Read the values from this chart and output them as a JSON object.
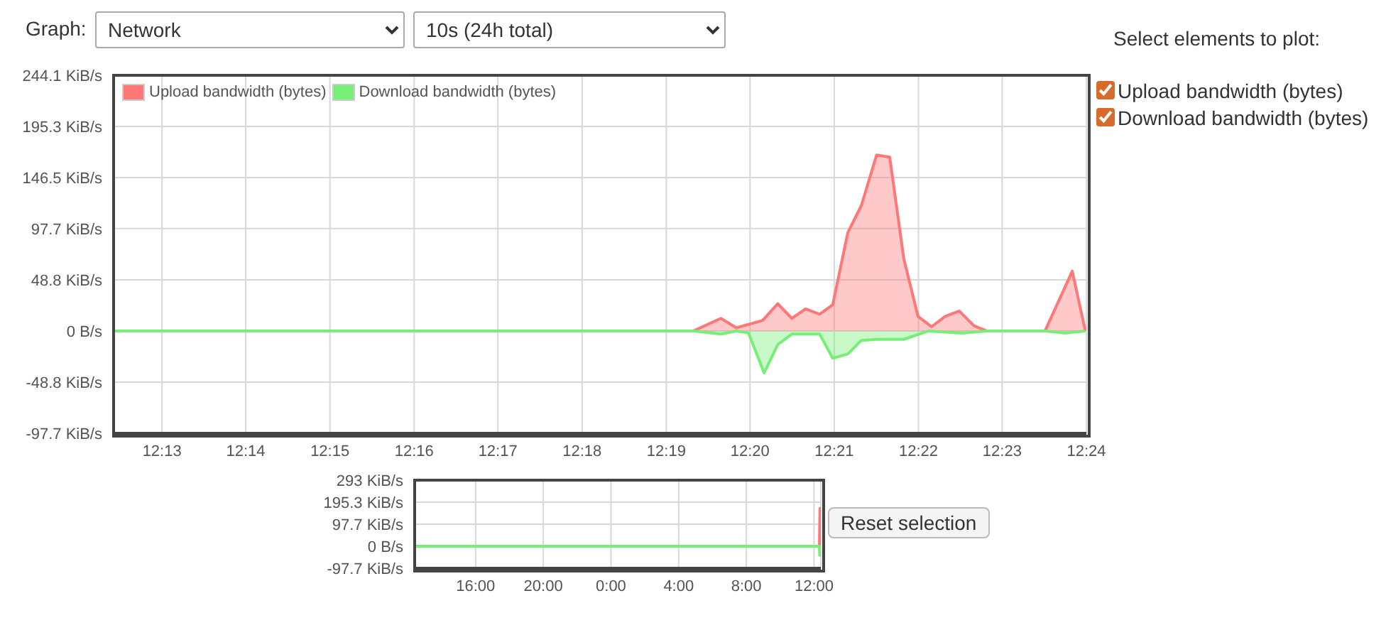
{
  "chart_data": [
    {
      "type": "area",
      "annotations": [
        "Graph:",
        "Network",
        "10s (24h total)",
        "Select elements to plot:"
      ],
      "series": [
        {
          "name": "Upload bandwidth (bytes)",
          "color": "#ff7777",
          "x": [
            12.2071,
            12.3221,
            12.3275,
            12.3306,
            12.3358,
            12.3388,
            12.3416,
            12.3443,
            12.3471,
            12.3497,
            12.3527,
            12.3554,
            12.3584,
            12.361,
            12.3638,
            12.3666,
            12.3693,
            12.372,
            12.3748,
            12.3777,
            12.3802,
            12.3918,
            12.3972,
            12.3998
          ],
          "values": [
            0,
            0,
            12,
            3,
            10,
            26,
            12,
            21,
            16,
            25,
            94,
            120,
            168,
            166,
            69,
            14,
            4,
            14,
            19,
            5,
            0,
            0,
            57,
            0
          ]
        },
        {
          "name": "Download bandwidth (bytes)",
          "color": "#77ee77",
          "x": [
            12.2071,
            12.3221,
            12.3275,
            12.3306,
            12.333,
            12.3361,
            12.3388,
            12.3416,
            12.3471,
            12.3497,
            12.3527,
            12.3554,
            12.3584,
            12.3638,
            12.3687,
            12.3753,
            12.3802,
            12.3918,
            12.396,
            12.3998
          ],
          "values": [
            0,
            0,
            -3,
            0,
            -2,
            -40,
            -13,
            -3,
            -3,
            -26,
            -22,
            -9,
            -8,
            -8,
            0,
            -2,
            0,
            0,
            -2,
            0
          ]
        }
      ],
      "xlim": [
        12.2071,
        12.4
      ],
      "xticks": [
        {
          "value": 12.2167,
          "label": "12:13"
        },
        {
          "value": 12.2333,
          "label": "12:14"
        },
        {
          "value": 12.25,
          "label": "12:15"
        },
        {
          "value": 12.2667,
          "label": "12:16"
        },
        {
          "value": 12.2833,
          "label": "12:17"
        },
        {
          "value": 12.3,
          "label": "12:18"
        },
        {
          "value": 12.3167,
          "label": "12:19"
        },
        {
          "value": 12.3333,
          "label": "12:20"
        },
        {
          "value": 12.35,
          "label": "12:21"
        },
        {
          "value": 12.3667,
          "label": "12:22"
        },
        {
          "value": 12.3833,
          "label": "12:23"
        },
        {
          "value": 12.4,
          "label": "12:24"
        }
      ],
      "ylim": [
        -97.7,
        244.1
      ],
      "yticks": [
        {
          "value": -97.7,
          "label": "-97.7 KiB/s"
        },
        {
          "value": -48.8,
          "label": "-48.8 KiB/s"
        },
        {
          "value": 0,
          "label": "0 B/s"
        },
        {
          "value": 48.8,
          "label": "48.8 KiB/s"
        },
        {
          "value": 97.7,
          "label": "97.7 KiB/s"
        },
        {
          "value": 146.5,
          "label": "146.5 KiB/s"
        },
        {
          "value": 195.3,
          "label": "195.3 KiB/s"
        },
        {
          "value": 244.1,
          "label": "244.1 KiB/s"
        }
      ],
      "grid": true,
      "legend": "top left"
    },
    {
      "type": "area",
      "annotations": [
        "Reset selection"
      ],
      "series": [
        {
          "color": "#ff7777",
          "x": [
            "2000-01-01T12:24",
            "2000-01-02T12:19",
            "2000-01-02T12:21",
            "2000-01-02T12:24"
          ],
          "values": [
            0,
            0,
            168,
            0
          ]
        },
        {
          "color": "#77ee77",
          "x": [
            "2000-01-01T12:24",
            "2000-01-02T12:19",
            "2000-01-02T12:20",
            "2000-01-02T12:24"
          ],
          "values": [
            0,
            0,
            -40,
            0
          ]
        }
      ],
      "xlim": [
        "2000-01-01T12:24",
        "2000-01-02T12:24"
      ],
      "xticks": [
        {
          "value": "2000-01-01T16:00",
          "label": "16:00"
        },
        {
          "value": "2000-01-01T20:00",
          "label": "20:00"
        },
        {
          "value": "2000-01-02T00:00",
          "label": "0:00"
        },
        {
          "value": "2000-01-02T04:00",
          "label": "4:00"
        },
        {
          "value": "2000-01-02T08:00",
          "label": "8:00"
        },
        {
          "value": "2000-01-02T12:00",
          "label": "12:00"
        }
      ],
      "ylim": [
        -97.7,
        293
      ],
      "yticks": [
        {
          "value": -97.7,
          "label": "-97.7 KiB/s"
        },
        {
          "value": 0,
          "label": "0 B/s"
        },
        {
          "value": 97.7,
          "label": "97.7 KiB/s"
        },
        {
          "value": 195.3,
          "label": "195.3 KiB/s"
        },
        {
          "value": 293,
          "label": "293 KiB/s"
        }
      ],
      "grid": true
    }
  ]
}
